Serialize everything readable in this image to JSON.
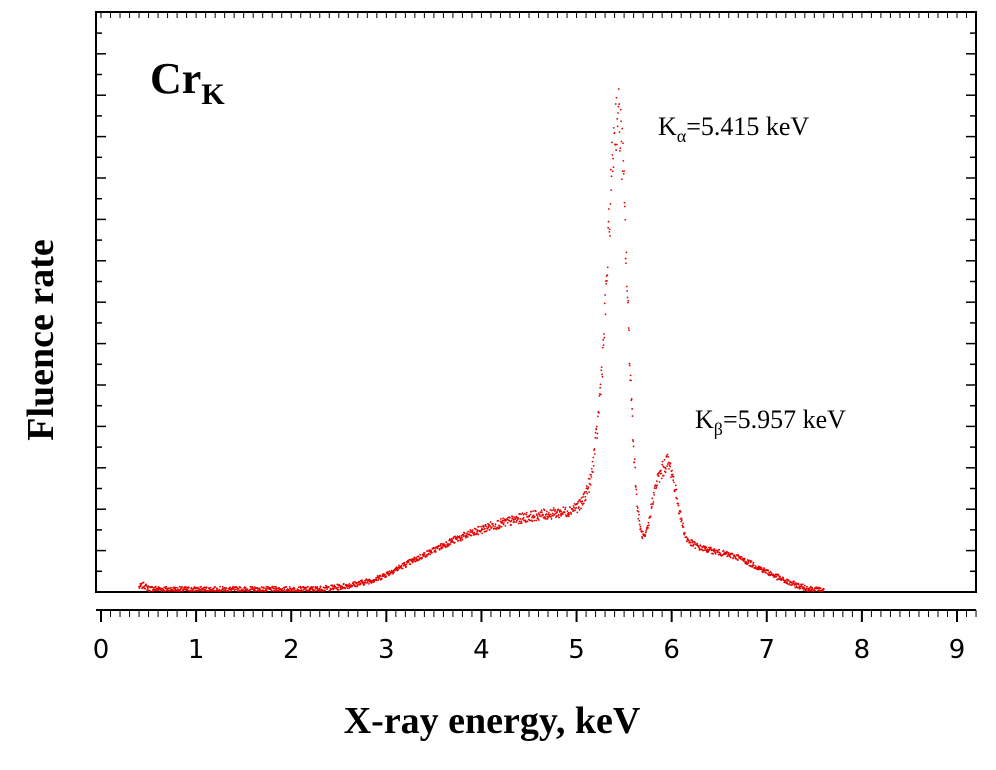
{
  "chart_data": {
    "type": "scatter",
    "title": "Cr",
    "title_subscript": "K",
    "xlabel": "X-ray energy, keV",
    "ylabel": "Fluence rate",
    "xlim": [
      0,
      9.2
    ],
    "ylim": [
      0,
      1.0
    ],
    "x_ticks": [
      0,
      1,
      2,
      3,
      4,
      5,
      6,
      7,
      8,
      9
    ],
    "y_tick_labels_shown": false,
    "grid": false,
    "marker_color": "#e60000",
    "annotations": [
      {
        "base": "K",
        "sub": "α",
        "rest": "=5.415 keV",
        "x": 5.6,
        "y": 0.97
      },
      {
        "base": "K",
        "sub": "β",
        "rest": "=5.957 keV",
        "x": 6.3,
        "y": 0.35
      }
    ],
    "series": [
      {
        "x": [
          0.4,
          0.45,
          0.5,
          0.8,
          1.0,
          1.3,
          1.6,
          1.9,
          2.1,
          2.3,
          2.5,
          2.7,
          2.9,
          3.1,
          3.3,
          3.5,
          3.7,
          3.9,
          4.1,
          4.3,
          4.5,
          4.7,
          4.9,
          5.05,
          5.15,
          5.22,
          5.28,
          5.33,
          5.37,
          5.4,
          5.43,
          5.46,
          5.49,
          5.52,
          5.56,
          5.6,
          5.64,
          5.68,
          5.72,
          5.76,
          5.8,
          5.85,
          5.9,
          5.95,
          6.0,
          6.05,
          6.1,
          6.15,
          6.2,
          6.3,
          6.4,
          6.5,
          6.6,
          6.7,
          6.8,
          6.9,
          7.0,
          7.1,
          7.2,
          7.3,
          7.4,
          7.5,
          7.6
        ],
        "y": [
          0.008,
          0.012,
          0.005,
          0.003,
          0.003,
          0.003,
          0.003,
          0.003,
          0.003,
          0.004,
          0.008,
          0.015,
          0.025,
          0.045,
          0.065,
          0.085,
          0.105,
          0.12,
          0.135,
          0.145,
          0.155,
          0.16,
          0.165,
          0.18,
          0.23,
          0.34,
          0.5,
          0.7,
          0.87,
          0.96,
          1.0,
          0.96,
          0.88,
          0.7,
          0.48,
          0.3,
          0.17,
          0.12,
          0.11,
          0.14,
          0.19,
          0.23,
          0.25,
          0.27,
          0.25,
          0.2,
          0.15,
          0.11,
          0.1,
          0.09,
          0.085,
          0.08,
          0.075,
          0.07,
          0.06,
          0.05,
          0.04,
          0.03,
          0.02,
          0.013,
          0.007,
          0.003,
          0.001
        ]
      }
    ]
  }
}
